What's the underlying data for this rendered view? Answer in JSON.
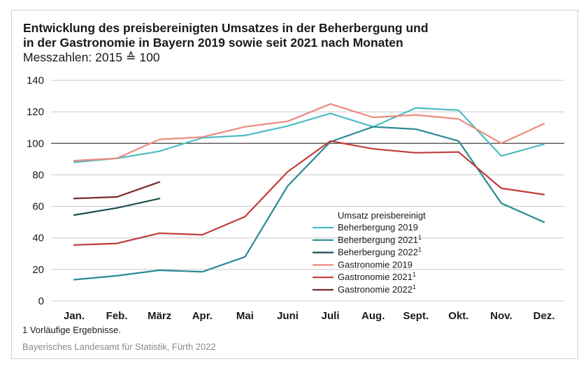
{
  "title_lines": [
    "Entwicklung des preisbereinigten Umsatzes in der Beherbergung und",
    "in der Gastronomie in Bayern 2019 sowie seit 2021 nach Monaten"
  ],
  "subtitle": "Messzahlen: 2015 ≙ 100",
  "footnote": "1  Vorläufige Ergebnisse.",
  "source": "Bayerisches Landesamt für Statistik, Fürth 2022",
  "chart_data": {
    "type": "line",
    "categories": [
      "Jan.",
      "Feb.",
      "März",
      "Apr.",
      "Mai",
      "Juni",
      "Juli",
      "Aug.",
      "Sept.",
      "Okt.",
      "Nov.",
      "Dez."
    ],
    "ylim": [
      0,
      140
    ],
    "yticks": [
      0,
      20,
      40,
      60,
      80,
      100,
      120,
      140
    ],
    "reference_line": 100,
    "grid": true,
    "legend": {
      "title": "Umsatz preisbereinigt",
      "placement": "center-right"
    },
    "series": [
      {
        "name": "Beherbergung 2019",
        "footnote": "",
        "color": "#4cbcc4",
        "values": [
          88,
          90.5,
          95,
          103.5,
          105,
          111,
          119,
          110.5,
          122.5,
          121,
          92,
          99.5
        ]
      },
      {
        "name": "Beherbergung 2021",
        "footnote": "1",
        "color": "#2a8a93",
        "values": [
          13.5,
          16,
          19.5,
          18.5,
          28,
          73,
          101,
          110.5,
          109,
          101.5,
          62,
          50
        ]
      },
      {
        "name": "Beherbergung 2022",
        "footnote": "1",
        "color": "#1e4e52",
        "values": [
          54.5,
          59,
          65,
          null,
          null,
          null,
          null,
          null,
          null,
          null,
          null,
          null
        ]
      },
      {
        "name": "Gastronomie 2019",
        "footnote": "",
        "color": "#ec8a80",
        "values": [
          89,
          90.5,
          102.5,
          104,
          110.5,
          114,
          125,
          116.5,
          118,
          115.5,
          100,
          112.5
        ]
      },
      {
        "name": "Gastronomie 2021",
        "footnote": "1",
        "color": "#c23a3a",
        "values": [
          35.5,
          36.5,
          43,
          42,
          53.5,
          82,
          101.5,
          96.5,
          94,
          94.5,
          71.5,
          67.5
        ]
      },
      {
        "name": "Gastronomie 2022",
        "footnote": "1",
        "color": "#7a2a2a",
        "values": [
          65,
          66,
          75.5,
          null,
          null,
          null,
          null,
          null,
          null,
          null,
          null,
          null
        ]
      }
    ]
  }
}
